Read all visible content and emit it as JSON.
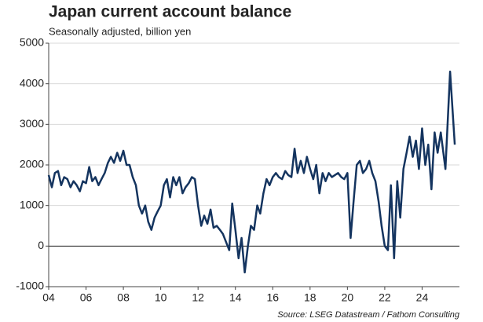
{
  "chart_data": {
    "type": "line",
    "title": "Japan current account balance",
    "subtitle": "Seasonally adjusted, billion yen",
    "source": "Source: LSEG Datastream / Fathom Consulting",
    "x": [
      2004,
      2004.17,
      2004.33,
      2004.5,
      2004.67,
      2004.83,
      2005,
      2005.17,
      2005.33,
      2005.5,
      2005.67,
      2005.83,
      2006,
      2006.17,
      2006.33,
      2006.5,
      2006.67,
      2006.83,
      2007,
      2007.17,
      2007.33,
      2007.5,
      2007.67,
      2007.83,
      2008,
      2008.17,
      2008.33,
      2008.5,
      2008.67,
      2008.83,
      2009,
      2009.17,
      2009.33,
      2009.5,
      2009.67,
      2009.83,
      2010,
      2010.17,
      2010.33,
      2010.5,
      2010.67,
      2010.83,
      2011,
      2011.17,
      2011.33,
      2011.5,
      2011.67,
      2011.83,
      2012,
      2012.17,
      2012.33,
      2012.5,
      2012.67,
      2012.83,
      2013,
      2013.17,
      2013.33,
      2013.5,
      2013.67,
      2013.83,
      2014,
      2014.17,
      2014.33,
      2014.5,
      2014.67,
      2014.83,
      2015,
      2015.17,
      2015.33,
      2015.5,
      2015.67,
      2015.83,
      2016,
      2016.17,
      2016.33,
      2016.5,
      2016.67,
      2016.83,
      2017,
      2017.17,
      2017.33,
      2017.5,
      2017.67,
      2017.83,
      2018,
      2018.17,
      2018.33,
      2018.5,
      2018.67,
      2018.83,
      2019,
      2019.17,
      2019.33,
      2019.5,
      2019.67,
      2019.83,
      2020,
      2020.17,
      2020.33,
      2020.5,
      2020.67,
      2020.83,
      2021,
      2021.17,
      2021.33,
      2021.5,
      2021.67,
      2021.83,
      2022,
      2022.17,
      2022.33,
      2022.5,
      2022.67,
      2022.83,
      2023,
      2023.17,
      2023.33,
      2023.5,
      2023.67,
      2023.83,
      2024,
      2024.17,
      2024.33,
      2024.5,
      2024.67,
      2024.83,
      2025,
      2025.25,
      2025.5,
      2025.75
    ],
    "series": [
      {
        "name": "Current account balance",
        "color": "#14345f",
        "values": [
          1750,
          1450,
          1800,
          1850,
          1500,
          1700,
          1650,
          1450,
          1600,
          1500,
          1350,
          1600,
          1550,
          1950,
          1600,
          1700,
          1500,
          1650,
          1800,
          2050,
          2200,
          2050,
          2300,
          2100,
          2350,
          2000,
          2000,
          1700,
          1500,
          1000,
          800,
          1000,
          600,
          400,
          700,
          850,
          1000,
          1500,
          1650,
          1200,
          1700,
          1500,
          1700,
          1300,
          1450,
          1550,
          1700,
          1650,
          1000,
          500,
          750,
          550,
          900,
          450,
          500,
          400,
          300,
          100,
          -100,
          1050,
          400,
          -300,
          200,
          -650,
          0,
          500,
          400,
          1000,
          800,
          1300,
          1650,
          1500,
          1700,
          1800,
          1700,
          1650,
          1850,
          1750,
          1700,
          2400,
          1800,
          2100,
          1800,
          2200,
          1900,
          1650,
          2000,
          1300,
          1800,
          1600,
          1800,
          1700,
          1750,
          1800,
          1700,
          1650,
          1800,
          200,
          1100,
          2000,
          2100,
          1800,
          1900,
          2100,
          1800,
          1600,
          1100,
          500,
          0,
          -100,
          1500,
          -300,
          1600,
          700,
          1900,
          2300,
          2700,
          2200,
          2600,
          1900,
          2900,
          2000,
          2500,
          1400,
          2800,
          2300,
          2800,
          1900,
          4300,
          2500
        ]
      }
    ],
    "xlim": [
      2004,
      2026
    ],
    "xticks": [
      {
        "value": 2004,
        "label": "04"
      },
      {
        "value": 2006,
        "label": "06"
      },
      {
        "value": 2008,
        "label": "08"
      },
      {
        "value": 2010,
        "label": "10"
      },
      {
        "value": 2012,
        "label": "12"
      },
      {
        "value": 2014,
        "label": "14"
      },
      {
        "value": 2016,
        "label": "16"
      },
      {
        "value": 2018,
        "label": "18"
      },
      {
        "value": 2020,
        "label": "20"
      },
      {
        "value": 2022,
        "label": "22"
      },
      {
        "value": 2024,
        "label": "24"
      }
    ],
    "ylim": [
      -1000,
      5000
    ],
    "yticks": [
      -1000,
      0,
      1000,
      2000,
      3000,
      4000,
      5000
    ],
    "grid": true
  }
}
